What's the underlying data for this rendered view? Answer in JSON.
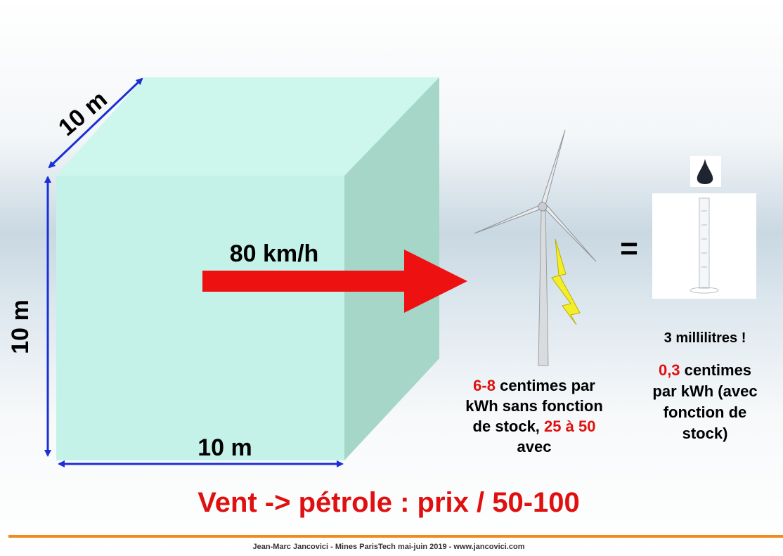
{
  "slide": {
    "depth_label": "10 m",
    "height_label": "10 m",
    "width_label": "10 m",
    "speed_label": "80 km/h",
    "wind_text": [
      [
        "6-8",
        " centimes par"
      ],
      [
        "kWh sans fonction"
      ],
      [
        "de stock, ",
        "25 à 50"
      ],
      [
        "avec"
      ]
    ],
    "oil_volume": "3 millilitres !",
    "oil_text": [
      [
        "0,3",
        " centimes"
      ],
      [
        "par kWh (avec"
      ],
      [
        "fonction de"
      ],
      [
        "stock)"
      ]
    ],
    "equals": "=",
    "headline": "Vent -> pétrole : prix / 50-100",
    "footer": "Jean-Marc Jancovici - Mines ParisTech mai-juin 2019 - www.jancovici.com"
  }
}
